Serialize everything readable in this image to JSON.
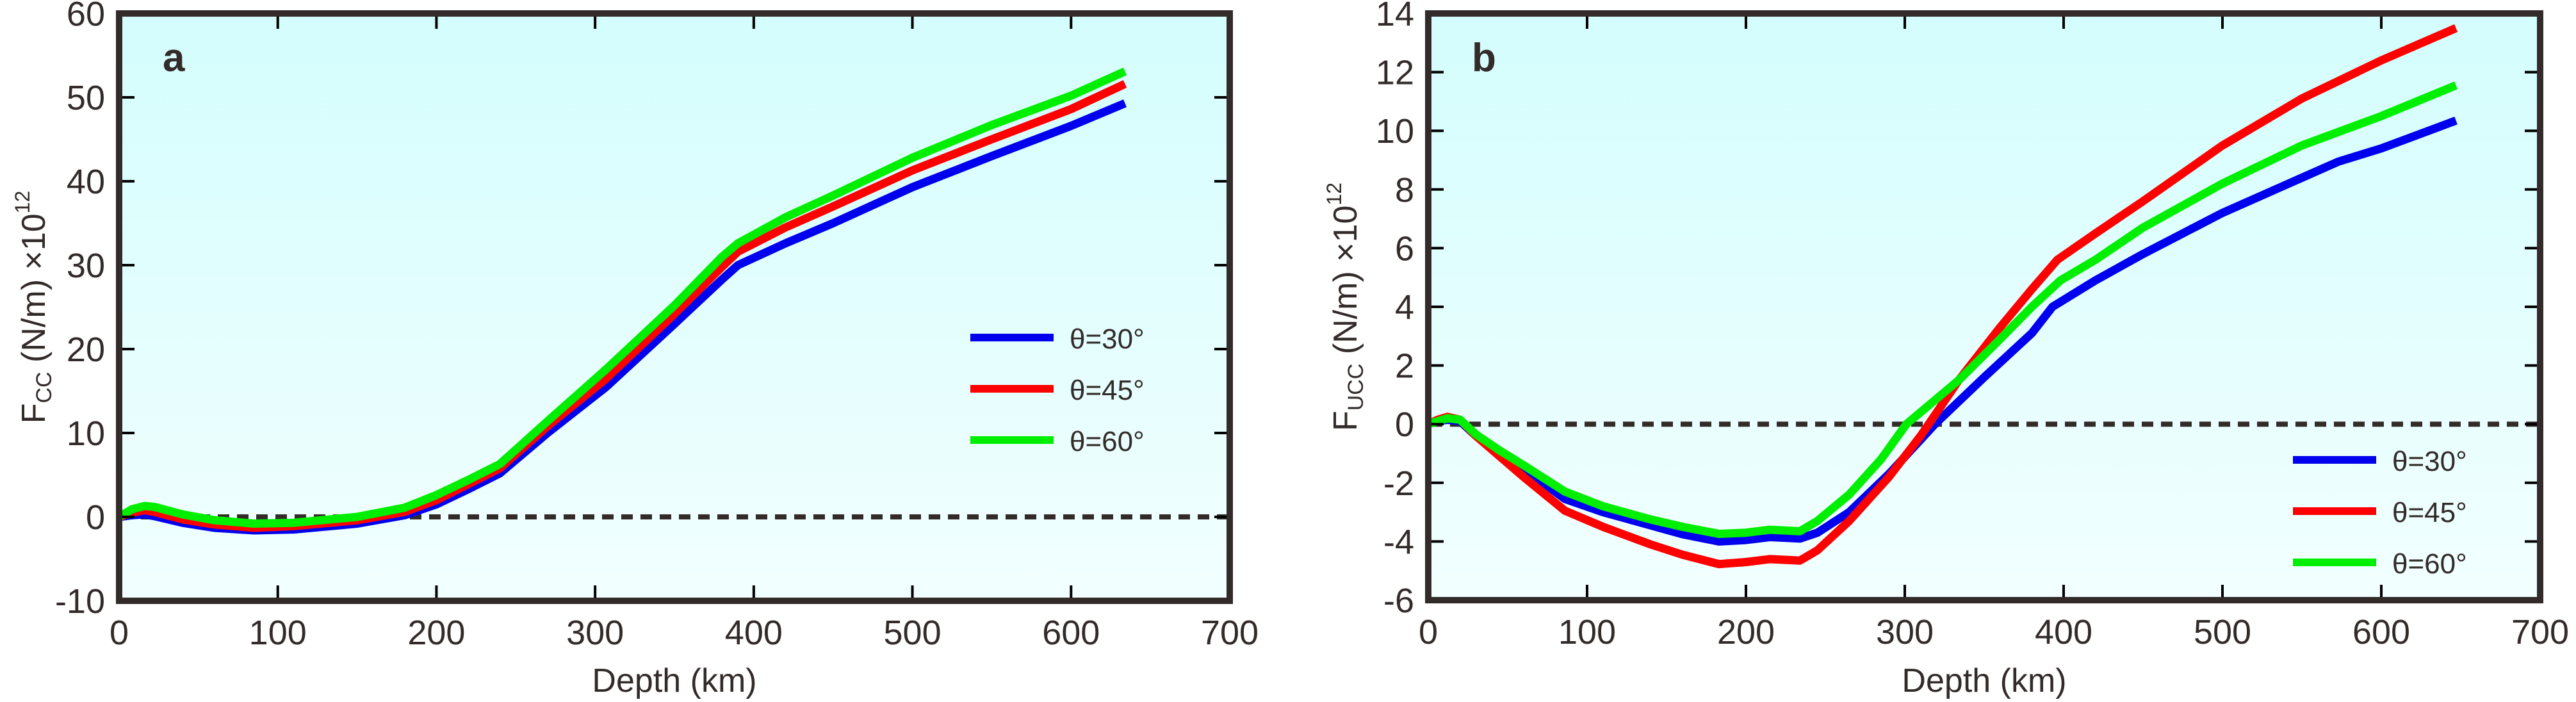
{
  "figure": {
    "colors": {
      "frame": "#332b29",
      "zero_line": "#332b29",
      "background_top": "#d4fdfd",
      "background_bottom": "#f2ffff"
    }
  },
  "chart_data": [
    {
      "type": "line",
      "panel_label": "a",
      "title": "",
      "xlabel": "Depth (km)",
      "ylabel": {
        "base": "F",
        "subscript": "CC",
        "unit": " (N/m) ×10",
        "superscript": "12"
      },
      "xlim": [
        0,
        700
      ],
      "ylim": [
        -10,
        60
      ],
      "xticks": [
        0,
        100,
        200,
        300,
        400,
        500,
        600,
        700
      ],
      "yticks": [
        -10,
        0,
        10,
        20,
        30,
        40,
        50,
        60
      ],
      "grid": false,
      "reference_line": {
        "y": 0,
        "style": "dashed"
      },
      "legend": {
        "placement": "center-right",
        "entries": [
          "θ=30°",
          "θ=45°",
          "θ=60°"
        ]
      },
      "series": [
        {
          "name": "θ=30°",
          "color": "#0000ee",
          "x": [
            0,
            8,
            16,
            22,
            40,
            60,
            85,
            110,
            150,
            180,
            200,
            220,
            240,
            270,
            307,
            350,
            380,
            390,
            420,
            450,
            500,
            550,
            600,
            634
          ],
          "y": [
            0,
            0.2,
            0.3,
            0.1,
            -0.7,
            -1.3,
            -1.6,
            -1.5,
            -0.8,
            0.2,
            1.5,
            3.3,
            5.2,
            10.0,
            15.5,
            23.0,
            28.3,
            30.0,
            32.6,
            35.0,
            39.3,
            43.0,
            46.6,
            49.3
          ]
        },
        {
          "name": "θ=45°",
          "color": "#ff0000",
          "x": [
            0,
            8,
            16,
            22,
            40,
            60,
            85,
            110,
            150,
            180,
            200,
            220,
            240,
            270,
            307,
            350,
            380,
            390,
            420,
            450,
            500,
            550,
            600,
            634
          ],
          "y": [
            0,
            0.5,
            0.8,
            0.6,
            -0.3,
            -0.9,
            -1.3,
            -1.1,
            -0.4,
            0.6,
            2.0,
            3.9,
            5.8,
            10.8,
            16.5,
            24.2,
            29.8,
            31.6,
            34.5,
            37.0,
            41.3,
            45.0,
            48.6,
            51.6
          ]
        },
        {
          "name": "θ=60°",
          "color": "#00ee00",
          "x": [
            0,
            8,
            16,
            22,
            40,
            60,
            85,
            110,
            150,
            180,
            200,
            220,
            240,
            270,
            307,
            350,
            380,
            390,
            420,
            450,
            500,
            550,
            600,
            634
          ],
          "y": [
            0,
            0.9,
            1.3,
            1.2,
            0.3,
            -0.4,
            -0.8,
            -0.7,
            0.0,
            1.1,
            2.6,
            4.4,
            6.3,
            11.4,
            17.6,
            25.2,
            31.0,
            32.6,
            35.7,
            38.3,
            42.8,
            46.7,
            50.2,
            53.1
          ]
        }
      ]
    },
    {
      "type": "line",
      "panel_label": "b",
      "title": "",
      "xlabel": "Depth (km)",
      "ylabel": {
        "base": "F",
        "subscript": "UCC",
        "unit": " (N/m) ×10",
        "superscript": "12"
      },
      "xlim": [
        0,
        700
      ],
      "ylim": [
        -6,
        14
      ],
      "xticks": [
        0,
        100,
        200,
        300,
        400,
        500,
        600,
        700
      ],
      "yticks": [
        -6,
        -4,
        -2,
        0,
        2,
        4,
        6,
        8,
        10,
        12,
        14
      ],
      "grid": false,
      "reference_line": {
        "y": 0,
        "style": "dashed"
      },
      "legend": {
        "placement": "bottom-right",
        "entries": [
          "θ=30°",
          "θ=45°",
          "θ=60°"
        ]
      },
      "series": [
        {
          "name": "θ=30°",
          "color": "#0000ee",
          "x": [
            0,
            6,
            12,
            20,
            30,
            45,
            60,
            86,
            110,
            140,
            160,
            183,
            200,
            215,
            234,
            245,
            265,
            290,
            319,
            350,
            380,
            393,
            420,
            450,
            500,
            550,
            573,
            600,
            647
          ],
          "y": [
            0,
            0.1,
            0.15,
            0.1,
            -0.4,
            -1.0,
            -1.5,
            -2.55,
            -3.0,
            -3.45,
            -3.75,
            -4.0,
            -3.95,
            -3.85,
            -3.9,
            -3.7,
            -3.0,
            -1.7,
            0.0,
            1.6,
            3.1,
            4.0,
            4.9,
            5.8,
            7.2,
            8.4,
            8.95,
            9.4,
            10.35
          ]
        },
        {
          "name": "θ=45°",
          "color": "#ff0000",
          "x": [
            0,
            6,
            12,
            20,
            30,
            45,
            60,
            86,
            110,
            140,
            160,
            183,
            200,
            215,
            234,
            245,
            265,
            290,
            310,
            334,
            360,
            380,
            396,
            420,
            450,
            500,
            550,
            600,
            647
          ],
          "y": [
            0,
            0.15,
            0.25,
            0.15,
            -0.4,
            -1.1,
            -1.8,
            -2.95,
            -3.5,
            -4.1,
            -4.45,
            -4.77,
            -4.7,
            -4.6,
            -4.65,
            -4.3,
            -3.3,
            -1.8,
            -0.4,
            1.5,
            3.3,
            4.6,
            5.6,
            6.5,
            7.6,
            9.5,
            11.1,
            12.4,
            13.5
          ]
        },
        {
          "name": "θ=60°",
          "color": "#00ee00",
          "x": [
            0,
            6,
            12,
            20,
            30,
            45,
            60,
            86,
            110,
            140,
            160,
            183,
            200,
            215,
            234,
            245,
            265,
            285,
            301,
            334,
            360,
            380,
            398,
            420,
            450,
            500,
            550,
            600,
            647
          ],
          "y": [
            0,
            0.1,
            0.2,
            0.15,
            -0.35,
            -0.9,
            -1.4,
            -2.3,
            -2.8,
            -3.25,
            -3.5,
            -3.74,
            -3.7,
            -3.6,
            -3.65,
            -3.3,
            -2.4,
            -1.2,
            0.0,
            1.5,
            2.9,
            4.0,
            4.9,
            5.6,
            6.7,
            8.2,
            9.5,
            10.5,
            11.55
          ]
        }
      ]
    }
  ]
}
